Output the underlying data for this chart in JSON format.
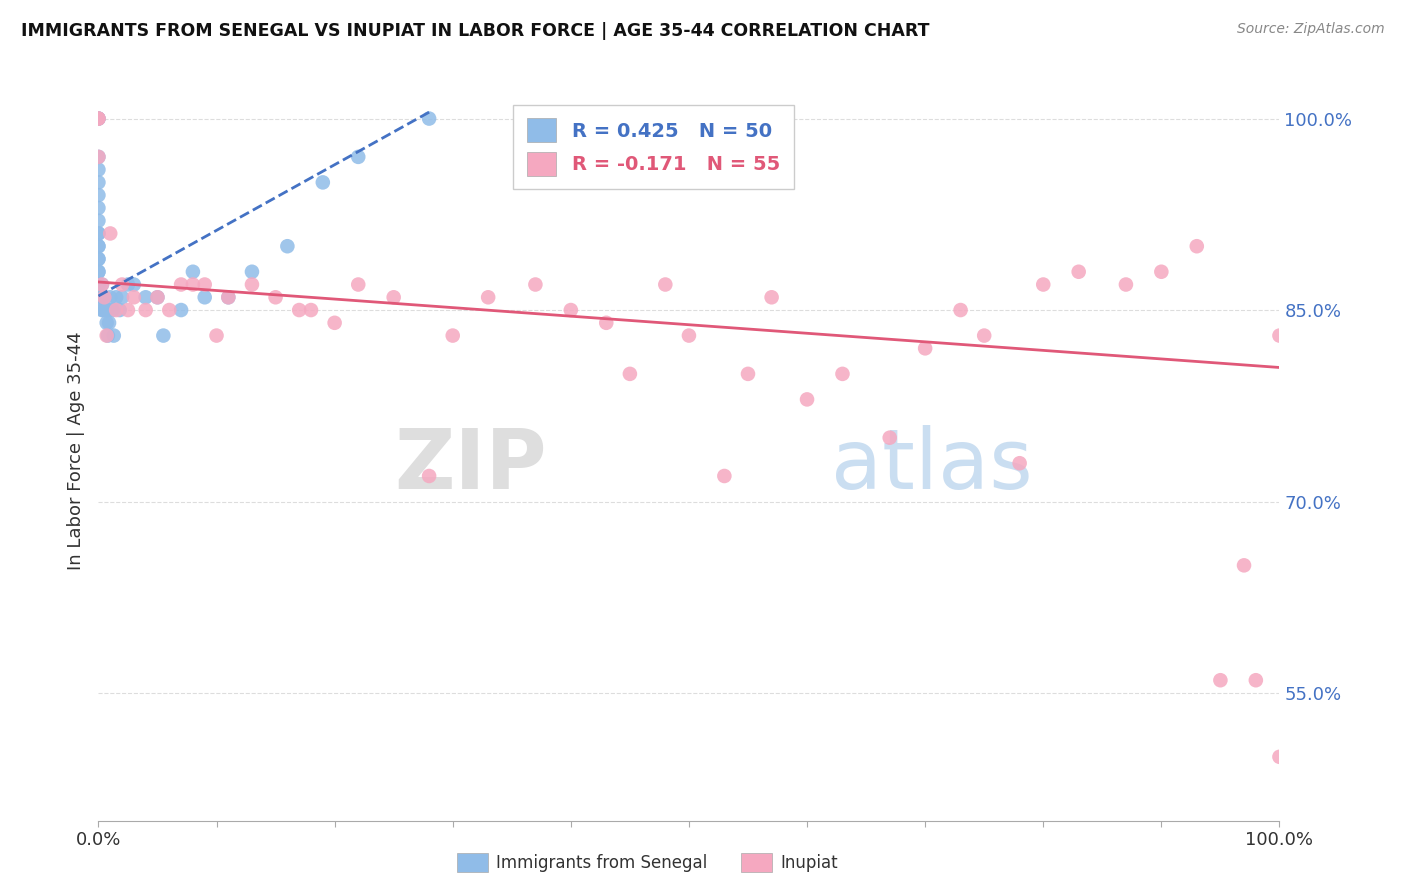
{
  "title": "IMMIGRANTS FROM SENEGAL VS INUPIAT IN LABOR FORCE | AGE 35-44 CORRELATION CHART",
  "source": "Source: ZipAtlas.com",
  "ylabel": "In Labor Force | Age 35-44",
  "xlim": [
    0.0,
    1.0
  ],
  "ylim": [
    0.45,
    1.03
  ],
  "yticks": [
    0.55,
    0.7,
    0.85,
    1.0
  ],
  "ytick_labels": [
    "55.0%",
    "70.0%",
    "85.0%",
    "100.0%"
  ],
  "grid_color": "#dddddd",
  "background_color": "#ffffff",
  "blue_color": "#90bce8",
  "pink_color": "#f5a8c0",
  "blue_line_color": "#4472c4",
  "pink_line_color": "#e05878",
  "legend_R_blue": "R = 0.425",
  "legend_N_blue": "N = 50",
  "legend_R_pink": "R = -0.171",
  "legend_N_pink": "N = 55",
  "blue_scatter_x": [
    0.0,
    0.0,
    0.0,
    0.0,
    0.0,
    0.0,
    0.0,
    0.0,
    0.0,
    0.0,
    0.0,
    0.0,
    0.0,
    0.0,
    0.0,
    0.0,
    0.0,
    0.0,
    0.0,
    0.0,
    0.003,
    0.003,
    0.003,
    0.004,
    0.005,
    0.006,
    0.007,
    0.008,
    0.008,
    0.009,
    0.01,
    0.012,
    0.013,
    0.015,
    0.018,
    0.02,
    0.025,
    0.03,
    0.04,
    0.05,
    0.055,
    0.07,
    0.08,
    0.09,
    0.11,
    0.13,
    0.16,
    0.19,
    0.22,
    0.28
  ],
  "blue_scatter_y": [
    1.0,
    1.0,
    0.97,
    0.96,
    0.95,
    0.94,
    0.93,
    0.92,
    0.91,
    0.91,
    0.9,
    0.9,
    0.89,
    0.89,
    0.88,
    0.88,
    0.87,
    0.87,
    0.87,
    0.86,
    0.87,
    0.86,
    0.85,
    0.85,
    0.86,
    0.85,
    0.84,
    0.85,
    0.83,
    0.84,
    0.86,
    0.85,
    0.83,
    0.86,
    0.85,
    0.86,
    0.87,
    0.87,
    0.86,
    0.86,
    0.83,
    0.85,
    0.88,
    0.86,
    0.86,
    0.88,
    0.9,
    0.95,
    0.97,
    1.0
  ],
  "pink_scatter_x": [
    0.0,
    0.0,
    0.0,
    0.003,
    0.005,
    0.007,
    0.01,
    0.015,
    0.02,
    0.025,
    0.03,
    0.04,
    0.05,
    0.06,
    0.07,
    0.08,
    0.09,
    0.1,
    0.11,
    0.13,
    0.15,
    0.17,
    0.18,
    0.2,
    0.22,
    0.25,
    0.28,
    0.3,
    0.33,
    0.37,
    0.4,
    0.43,
    0.45,
    0.48,
    0.5,
    0.53,
    0.55,
    0.57,
    0.6,
    0.63,
    0.67,
    0.7,
    0.73,
    0.75,
    0.78,
    0.8,
    0.83,
    0.87,
    0.9,
    0.93,
    0.95,
    0.97,
    0.98,
    1.0,
    1.0
  ],
  "pink_scatter_y": [
    1.0,
    1.0,
    0.97,
    0.87,
    0.86,
    0.83,
    0.91,
    0.85,
    0.87,
    0.85,
    0.86,
    0.85,
    0.86,
    0.85,
    0.87,
    0.87,
    0.87,
    0.83,
    0.86,
    0.87,
    0.86,
    0.85,
    0.85,
    0.84,
    0.87,
    0.86,
    0.72,
    0.83,
    0.86,
    0.87,
    0.85,
    0.84,
    0.8,
    0.87,
    0.83,
    0.72,
    0.8,
    0.86,
    0.78,
    0.8,
    0.75,
    0.82,
    0.85,
    0.83,
    0.73,
    0.87,
    0.88,
    0.87,
    0.88,
    0.9,
    0.56,
    0.65,
    0.56,
    0.83,
    0.5
  ],
  "blue_trend_x": [
    0.0,
    0.28
  ],
  "blue_trend_y": [
    0.861,
    1.005
  ],
  "pink_trend_x": [
    0.0,
    1.0
  ],
  "pink_trend_y": [
    0.872,
    0.805
  ]
}
